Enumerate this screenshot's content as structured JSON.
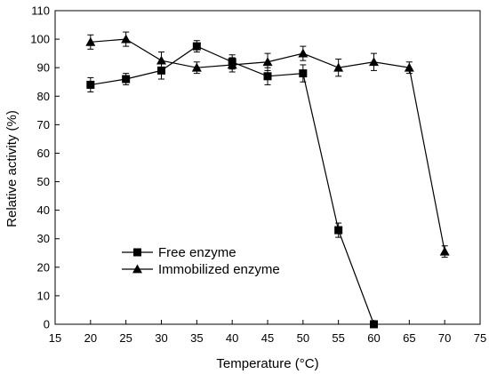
{
  "chart_data": {
    "type": "line",
    "xlabel": "Temperature (°C)",
    "ylabel": "Relative activity (%)",
    "xlim": [
      15,
      75
    ],
    "ylim": [
      0,
      110
    ],
    "x_ticks": [
      15,
      20,
      25,
      30,
      35,
      40,
      45,
      50,
      55,
      60,
      65,
      70,
      75
    ],
    "y_ticks": [
      0,
      10,
      20,
      30,
      40,
      50,
      60,
      70,
      80,
      90,
      100,
      110
    ],
    "grid": false,
    "legend_placement": "lower-left",
    "series": [
      {
        "name": "Free enzyme",
        "marker": "square",
        "x": [
          20,
          25,
          30,
          35,
          40,
          45,
          50,
          55,
          60
        ],
        "y": [
          84,
          86,
          89,
          97.5,
          92,
          87,
          88,
          33,
          0
        ],
        "err": [
          2.5,
          2,
          3,
          2,
          2.5,
          3,
          3,
          2.5,
          0.5
        ]
      },
      {
        "name": "Immobilized enzyme",
        "marker": "triangle",
        "x": [
          20,
          25,
          30,
          35,
          40,
          45,
          50,
          55,
          60,
          65,
          70
        ],
        "y": [
          99,
          100,
          92.5,
          90,
          91,
          92,
          95,
          90,
          92,
          90,
          25.5
        ],
        "err": [
          2.5,
          2.5,
          3,
          2,
          2.5,
          3,
          2.5,
          3,
          3,
          2,
          2
        ]
      }
    ]
  }
}
